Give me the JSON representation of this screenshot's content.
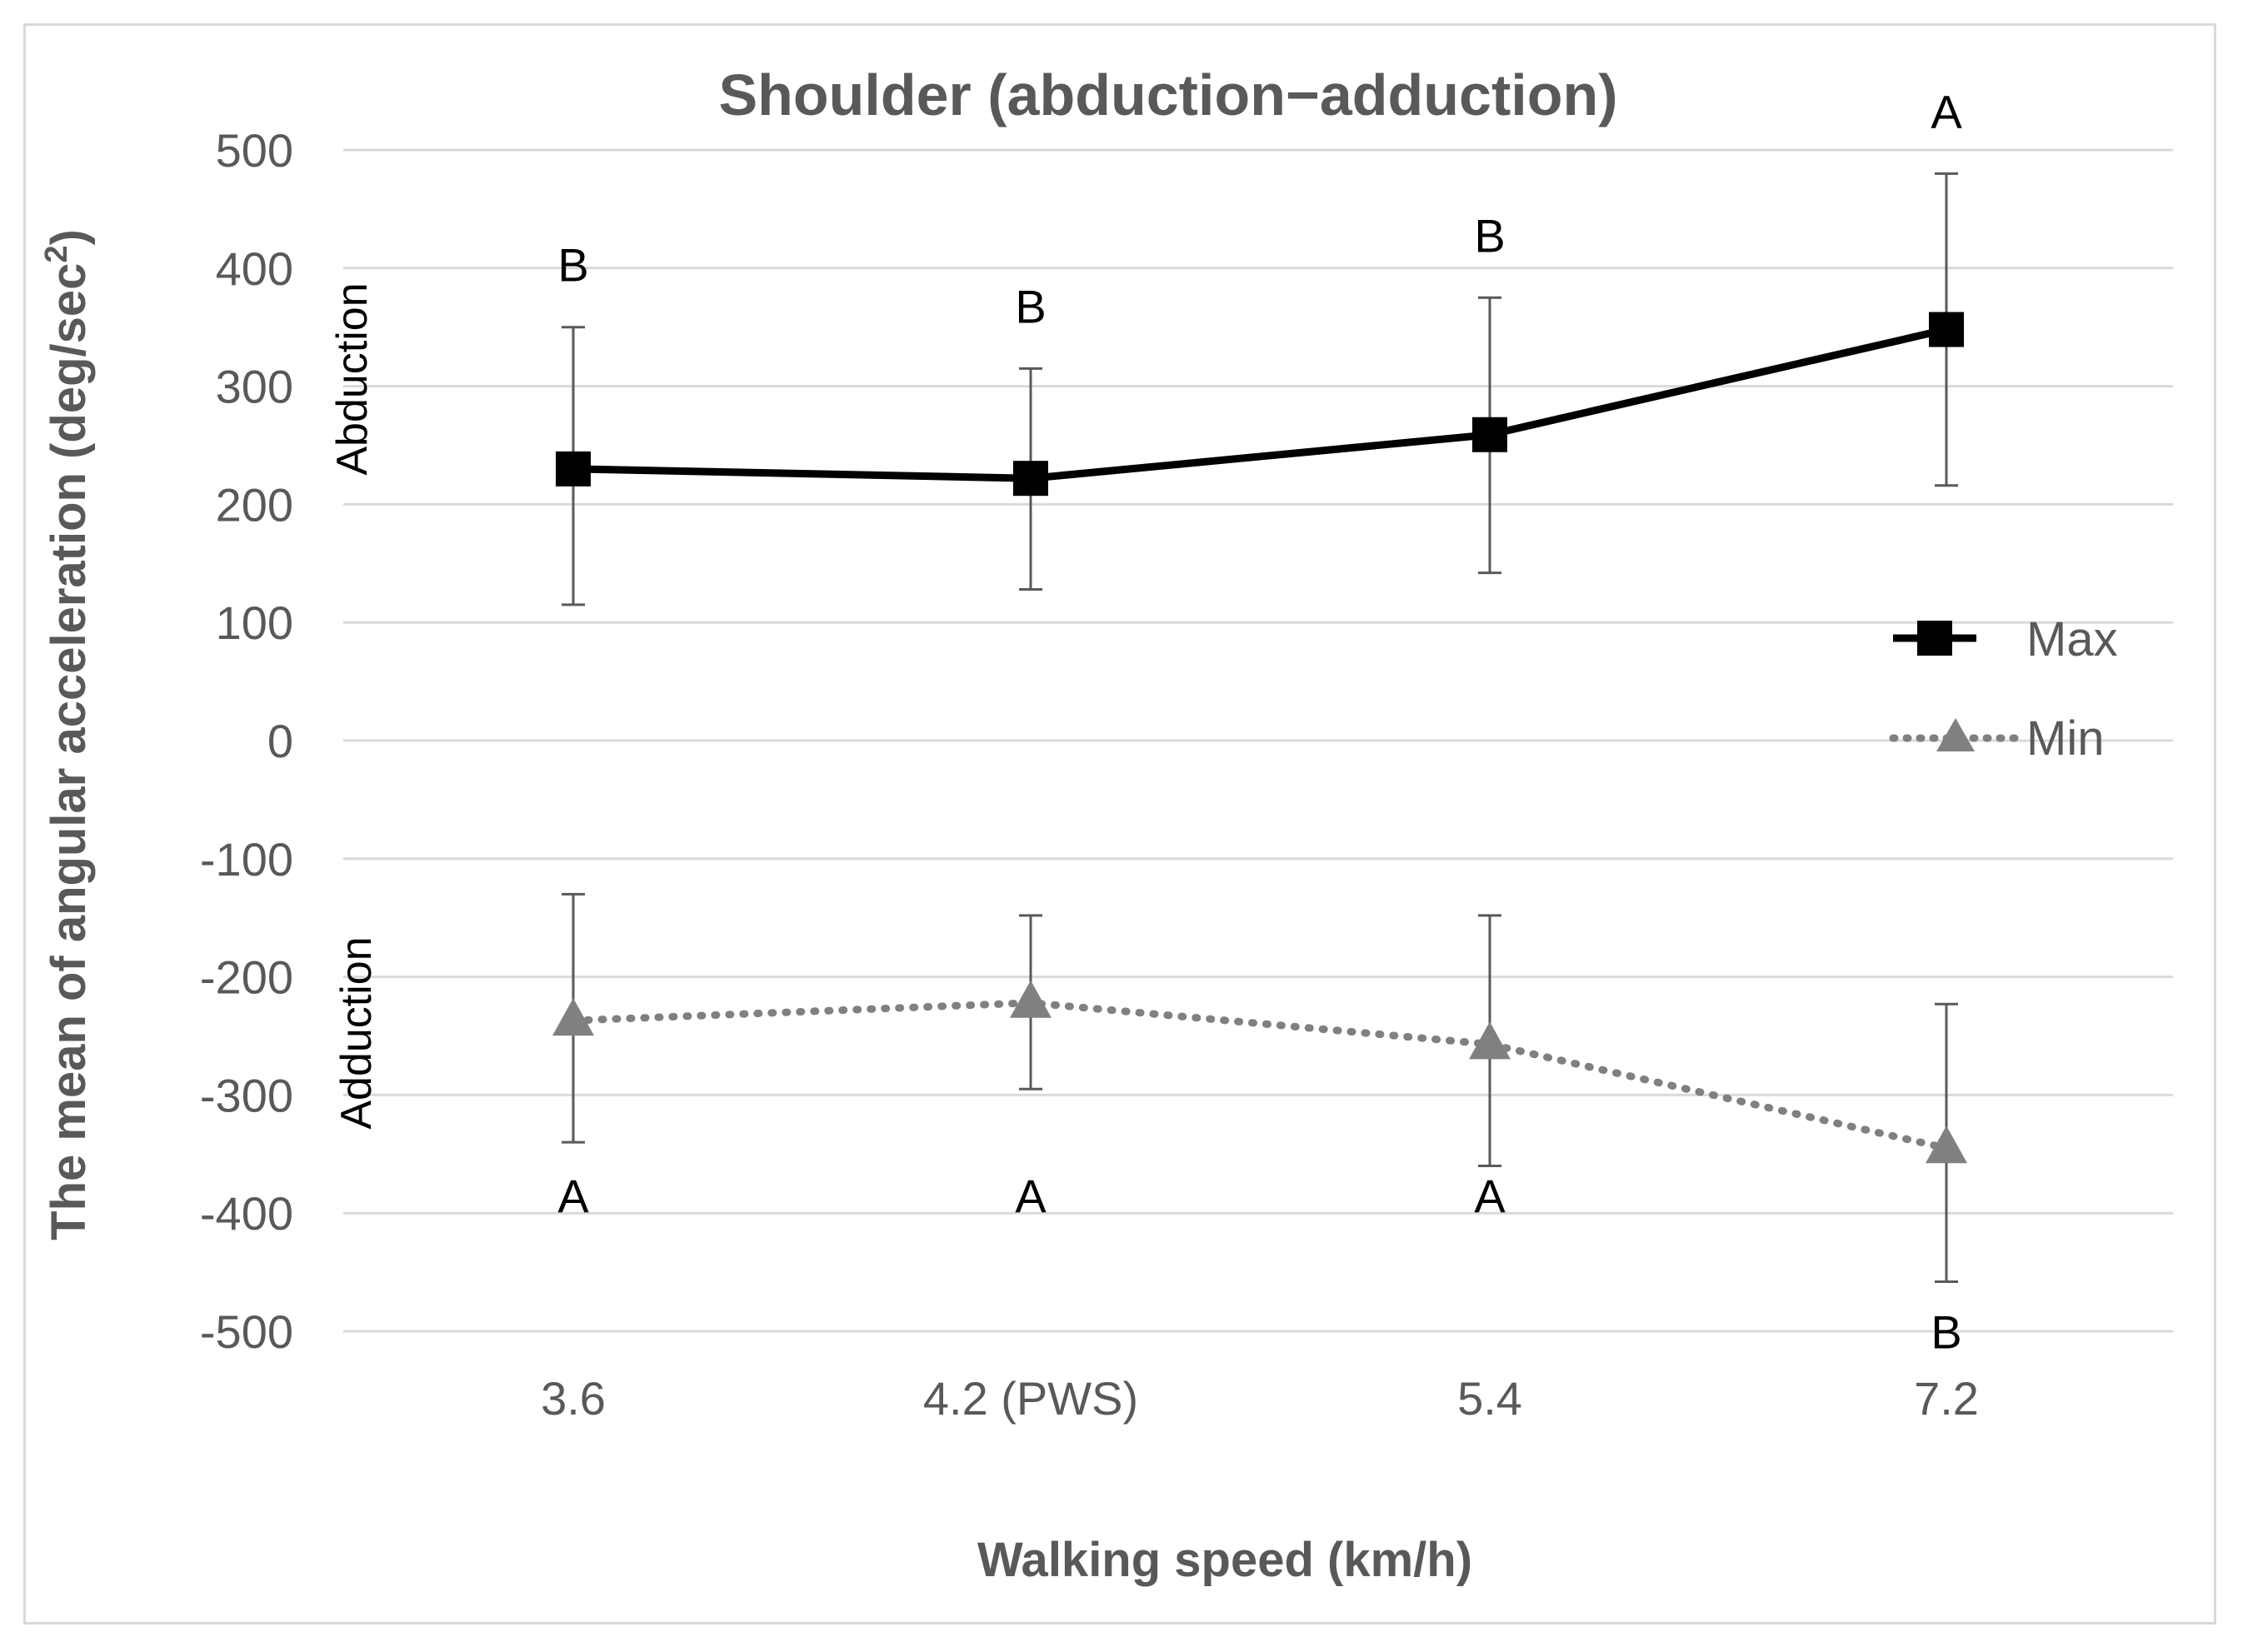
{
  "chart_data": {
    "type": "line",
    "title": "Shoulder (abduction−adduction)",
    "xlabel": "Walking speed (km/h)",
    "ylabel_main": "The mean of angular acceleration (deg/sec",
    "ylabel_sup": "2",
    "ylabel_close": ")",
    "ylim": [
      -500,
      500
    ],
    "yticks": [
      500,
      400,
      300,
      200,
      100,
      0,
      -100,
      -200,
      -300,
      -400,
      -500
    ],
    "categories": [
      "3.6",
      "4.2 (PWS)",
      "5.4",
      "7.2"
    ],
    "grid": true,
    "legend_position": "right",
    "region_labels": {
      "upper": "Abduction",
      "lower": "Adduction"
    },
    "series": [
      {
        "name": "Max",
        "style": "solid",
        "marker": "square",
        "color": "#000000",
        "values": [
          230,
          222,
          259,
          348
        ],
        "err_low": [
          115,
          128,
          142,
          216
        ],
        "err_high": [
          350,
          315,
          375,
          480
        ],
        "letters": [
          "B",
          "B",
          "B",
          "A"
        ]
      },
      {
        "name": "Min",
        "style": "dotted",
        "marker": "triangle",
        "color": "#808080",
        "values": [
          -237,
          -222,
          -257,
          -345
        ],
        "err_low": [
          -340,
          -295,
          -360,
          -458
        ],
        "err_high": [
          -130,
          -148,
          -148,
          -223
        ],
        "letters": [
          "A",
          "A",
          "A",
          "B"
        ]
      }
    ]
  }
}
